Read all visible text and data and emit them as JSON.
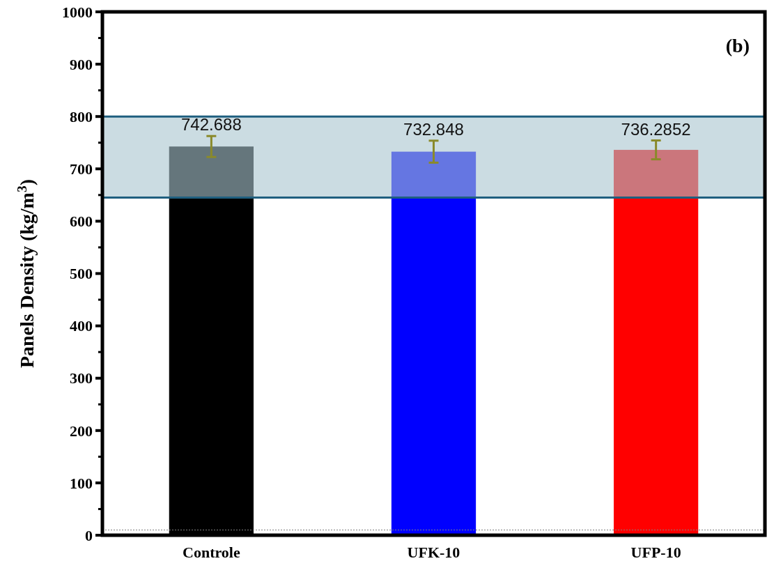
{
  "chart_data": {
    "type": "bar",
    "ylabel": "Panels Density (kg/m$^{3}$)",
    "categories": [
      "Controle",
      "UFK-10",
      "UFP-10"
    ],
    "values": [
      742.688,
      732.848,
      736.2852
    ],
    "colors": [
      "#000000",
      "#0000ff",
      "#ff0000"
    ],
    "errors": [
      20,
      21,
      18
    ],
    "data_labels": true,
    "ylim": [
      0,
      1000
    ],
    "yticks": [
      0,
      100,
      200,
      300,
      400,
      500,
      600,
      700,
      800,
      900,
      1000
    ],
    "bands": [
      {
        "axis": "y",
        "from": 645,
        "to": 800,
        "color": "#a9c4cf"
      }
    ],
    "ref_lines": [
      {
        "axis": "y",
        "value": 645,
        "color": "#1f5f7f",
        "line_style": "solid"
      },
      {
        "axis": "y",
        "value": 800,
        "color": "#1f5f7f",
        "line_style": "solid"
      },
      {
        "axis": "y",
        "value": 10,
        "color": "#808080",
        "line_style": "dotted"
      }
    ],
    "annotations": [
      "(b)"
    ]
  }
}
